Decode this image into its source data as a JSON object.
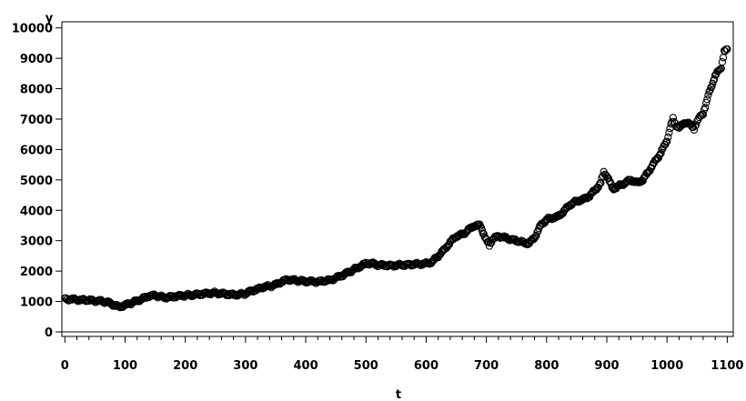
{
  "chart_data": {
    "type": "scatter",
    "xlabel": "t",
    "ylabel": "y",
    "xlim": [
      -5,
      1110
    ],
    "ylim": [
      -150,
      10200
    ],
    "xticks": [
      0,
      100,
      200,
      300,
      400,
      500,
      600,
      700,
      800,
      900,
      1000,
      1100
    ],
    "yticks": [
      0,
      1000,
      2000,
      3000,
      4000,
      5000,
      6000,
      7000,
      8000,
      9000,
      10000
    ],
    "reference_line_y": 0,
    "grid": false,
    "marker": "open-circle",
    "series": [
      {
        "x": [
          0,
          20,
          40,
          60,
          70,
          80,
          90,
          100,
          110,
          120,
          130,
          140,
          150,
          160,
          170,
          180,
          190,
          200,
          210,
          220,
          230,
          240,
          250,
          260,
          270,
          280,
          290,
          300,
          310,
          320,
          330,
          340,
          350,
          360,
          370,
          380,
          390,
          400,
          420,
          440,
          460,
          470,
          480,
          490,
          500,
          510,
          520,
          540,
          560,
          580,
          600,
          610,
          620,
          630,
          640,
          650,
          660,
          670,
          680,
          690,
          700,
          705,
          710,
          720,
          740,
          760,
          770,
          780,
          790,
          800,
          810,
          820,
          830,
          840,
          850,
          860,
          870,
          880,
          890,
          895,
          900,
          910,
          920,
          930,
          940,
          950,
          960,
          970,
          980,
          990,
          1000,
          1005,
          1010,
          1015,
          1020,
          1030,
          1040,
          1045,
          1050,
          1055,
          1060,
          1065,
          1070,
          1080,
          1085,
          1090,
          1095,
          1100
        ],
        "y": [
          1080,
          1060,
          1040,
          1010,
          980,
          900,
          820,
          880,
          950,
          1020,
          1100,
          1180,
          1200,
          1150,
          1130,
          1160,
          1180,
          1200,
          1210,
          1230,
          1250,
          1270,
          1280,
          1260,
          1240,
          1220,
          1230,
          1260,
          1350,
          1400,
          1480,
          1500,
          1550,
          1650,
          1720,
          1700,
          1680,
          1660,
          1650,
          1700,
          1850,
          1950,
          2050,
          2150,
          2250,
          2250,
          2200,
          2180,
          2200,
          2220,
          2250,
          2300,
          2500,
          2700,
          2950,
          3150,
          3200,
          3350,
          3500,
          3500,
          3000,
          2850,
          3050,
          3150,
          3050,
          2950,
          2900,
          3100,
          3500,
          3700,
          3750,
          3800,
          4000,
          4200,
          4300,
          4350,
          4450,
          4650,
          4900,
          5250,
          5150,
          4700,
          4800,
          4900,
          5000,
          4900,
          5000,
          5300,
          5600,
          5900,
          6300,
          6700,
          7000,
          6800,
          6700,
          6900,
          6800,
          6700,
          6900,
          7100,
          7200,
          7500,
          7900,
          8400,
          8600,
          8700,
          9200,
          9300
        ]
      }
    ]
  }
}
